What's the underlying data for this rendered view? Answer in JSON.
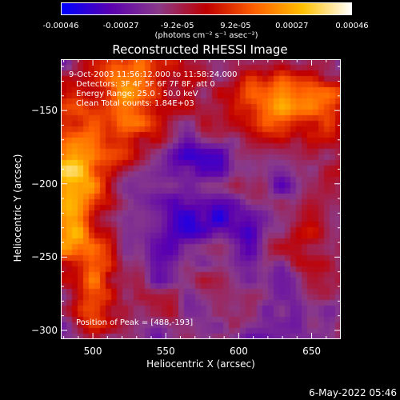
{
  "colorbar": {
    "ticks": [
      "-0.00046",
      "-0.00027",
      "-9.2e-05",
      "9.2e-05",
      "0.00027",
      "0.00046"
    ],
    "tick_values": [
      -0.00046,
      -0.00027,
      -9.2e-05,
      9.2e-05,
      0.00027,
      0.00046
    ],
    "range": [
      -0.00046,
      0.00046
    ],
    "units": "(photons cm⁻² s⁻¹ asec⁻²)",
    "colormap": [
      "#0000ff",
      "#5a00b0",
      "#8a3a8a",
      "#c00000",
      "#ff6000",
      "#ffc000",
      "#ffffff"
    ]
  },
  "chart_data": {
    "type": "heatmap",
    "title": "Reconstructed RHESSI Image",
    "xlabel": "Heliocentric X (arcsec)",
    "ylabel": "Heliocentric Y (arcsec)",
    "xlim": [
      478,
      670
    ],
    "ylim": [
      -306,
      -115
    ],
    "x_ticks": [
      500,
      550,
      600,
      650
    ],
    "y_ticks": [
      -150,
      -200,
      -250,
      -300
    ],
    "annotations": {
      "time": "9-Oct-2003 11:56:12.000 to 11:58:24.000",
      "detectors": "Detectors: 3F 4F 5F 6F 7F 8F, att 0",
      "energy": "Energy Range: 25.0 - 50.0 keV",
      "method": "Clean     Total counts: 1.84E+03",
      "peak": "Position of Peak = [488,-193]"
    },
    "peak_position": [
      488,
      -193
    ]
  },
  "footer": {
    "timestamp": "6-May-2022 05:46"
  }
}
